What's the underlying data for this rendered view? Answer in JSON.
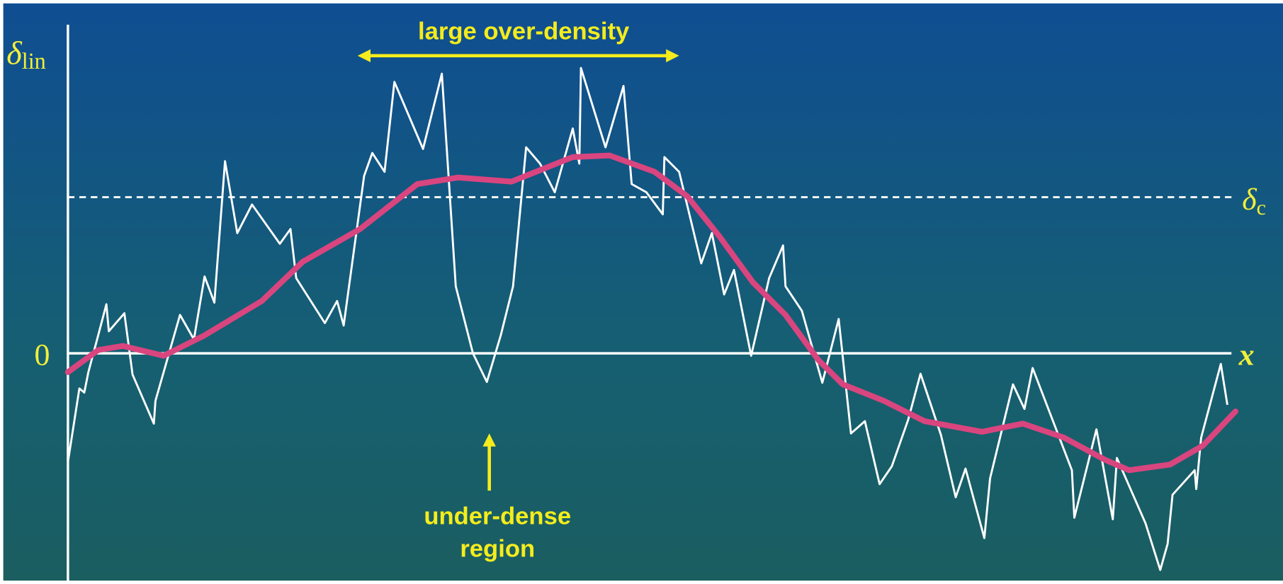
{
  "labels": {
    "y_axis": "δ",
    "y_axis_sub": "lin",
    "zero": "0",
    "threshold": "δ",
    "threshold_sub": "c",
    "x_axis": "x⃗"
  },
  "annotations": {
    "over_density": "large over-density",
    "under_dense": [
      "under-dense",
      "region"
    ]
  }
}
